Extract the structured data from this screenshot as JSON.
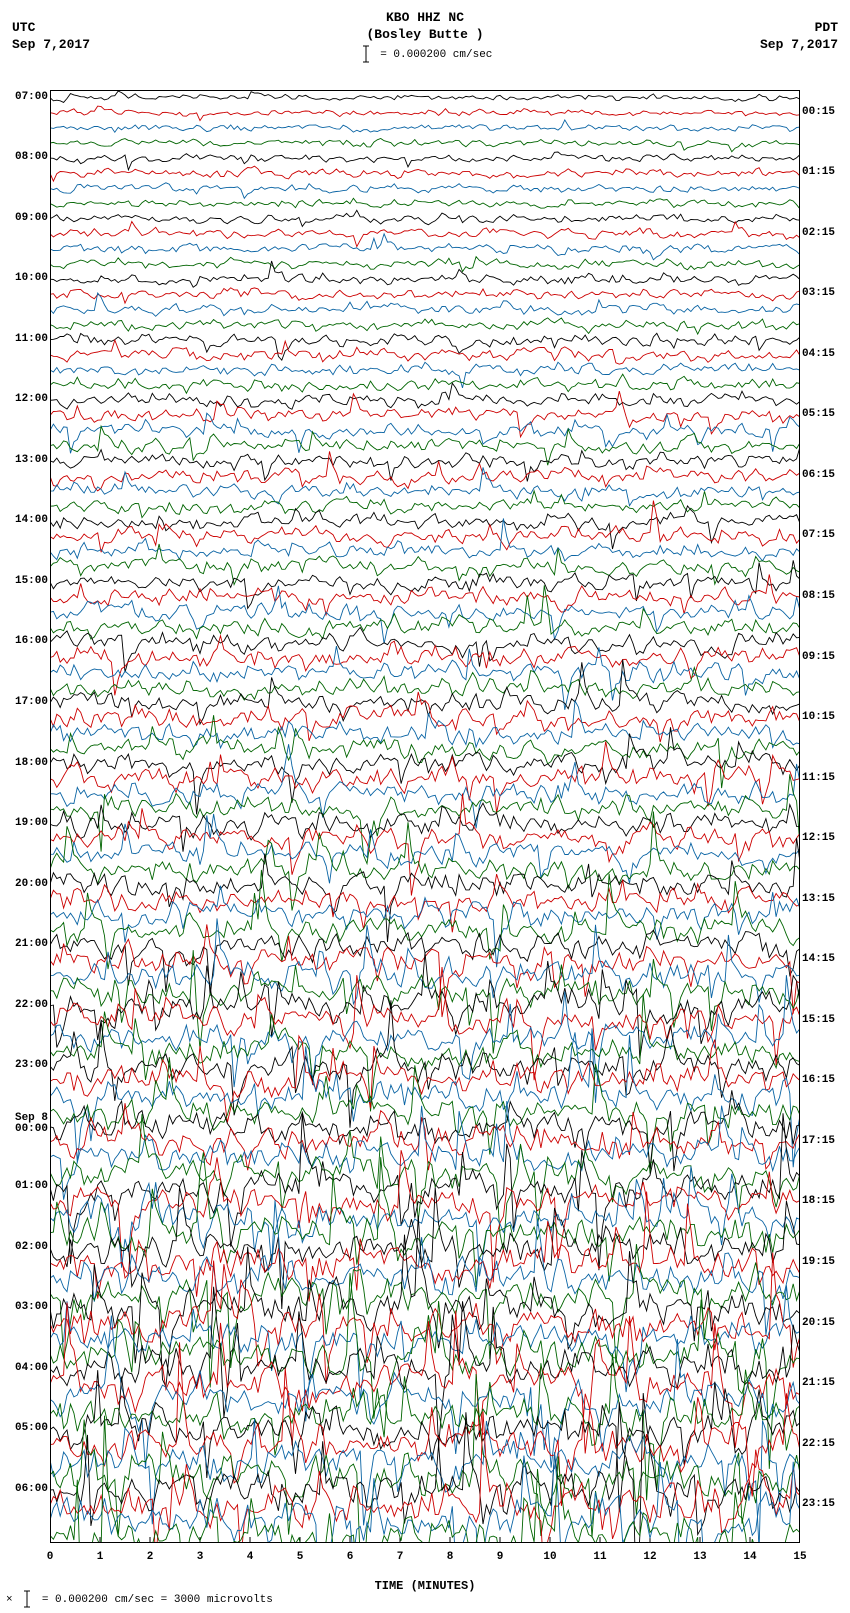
{
  "header": {
    "title1": "KBO HHZ NC",
    "title2": "(Bosley Butte )",
    "scale_line": "= 0.000200 cm/sec",
    "left_tz": "UTC",
    "left_date": "Sep 7,2017",
    "right_tz": "PDT",
    "right_date": "Sep 7,2017"
  },
  "plot": {
    "background_color": "#ffffff",
    "frame_color": "#000000",
    "colors": [
      "#000000",
      "#cc0000",
      "#0a64a4",
      "#006400"
    ],
    "minutes": 15,
    "x_ticks": [
      0,
      1,
      2,
      3,
      4,
      5,
      6,
      7,
      8,
      9,
      10,
      11,
      12,
      13,
      14,
      15
    ],
    "x_title": "TIME (MINUTES)",
    "hours_utc": 24,
    "lines_per_hour": 4,
    "base_amplitude": 5.5,
    "growth_factor": 0.055,
    "noise_passes": 3,
    "left_hour_labels": [
      "07:00",
      "08:00",
      "09:00",
      "10:00",
      "11:00",
      "12:00",
      "13:00",
      "14:00",
      "15:00",
      "16:00",
      "17:00",
      "18:00",
      "19:00",
      "20:00",
      "21:00",
      "22:00",
      "23:00",
      "",
      "01:00",
      "02:00",
      "03:00",
      "04:00",
      "05:00",
      "06:00"
    ],
    "left_special": {
      "index": 17,
      "labels": [
        "Sep 8",
        "00:00"
      ]
    },
    "right_hour_labels": [
      "00:15",
      "01:15",
      "02:15",
      "03:15",
      "04:15",
      "05:15",
      "06:15",
      "07:15",
      "08:15",
      "09:15",
      "10:15",
      "11:15",
      "12:15",
      "13:15",
      "14:15",
      "15:15",
      "16:15",
      "17:15",
      "18:15",
      "19:15",
      "20:15",
      "21:15",
      "22:15",
      "23:15"
    ]
  },
  "footer": {
    "text": "= 0.000200 cm/sec =   3000 microvolts"
  }
}
